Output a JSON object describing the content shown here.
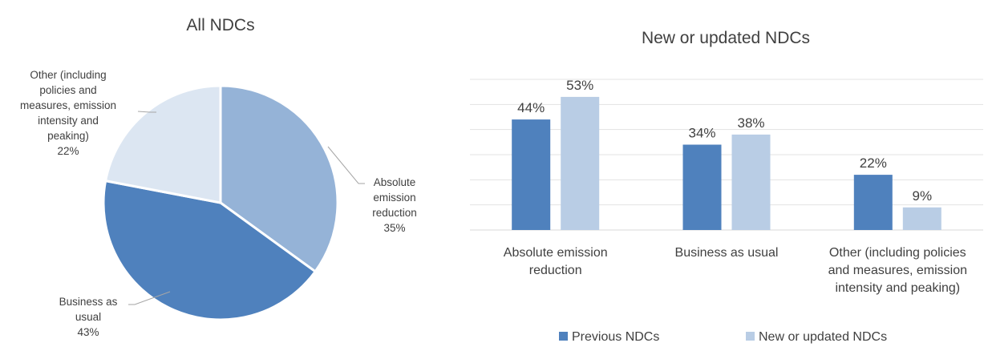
{
  "chart_data": [
    {
      "type": "pie",
      "title": "All NDCs",
      "slices": [
        {
          "label_lines": [
            "Absolute",
            "emission",
            "reduction"
          ],
          "pct_label": "35%",
          "value": 35,
          "color": "#95b3d7"
        },
        {
          "label_lines": [
            "Business as",
            "usual"
          ],
          "pct_label": "43%",
          "value": 43,
          "color": "#4f81bd"
        },
        {
          "label_lines": [
            "Other (including",
            "policies and",
            "measures, emission",
            "intensity and",
            "peaking)"
          ],
          "pct_label": "22%",
          "value": 22,
          "color": "#dce6f2"
        }
      ]
    },
    {
      "type": "bar",
      "title": "New or updated NDCs",
      "ylim": [
        0,
        60
      ],
      "grid": true,
      "legend_position": "bottom",
      "categories": [
        [
          "Absolute emission",
          "reduction"
        ],
        [
          "Business as usual"
        ],
        [
          "Other (including policies",
          "and measures, emission",
          "intensity and peaking)"
        ]
      ],
      "series": [
        {
          "name": "Previous NDCs",
          "values": [
            44,
            34,
            22
          ],
          "labels": [
            "44%",
            "34%",
            "22%"
          ],
          "color": "#4f81bd"
        },
        {
          "name": "New or updated NDCs",
          "values": [
            53,
            38,
            9
          ],
          "labels": [
            "53%",
            "38%",
            "9%"
          ],
          "color": "#b9cde5"
        }
      ]
    }
  ]
}
